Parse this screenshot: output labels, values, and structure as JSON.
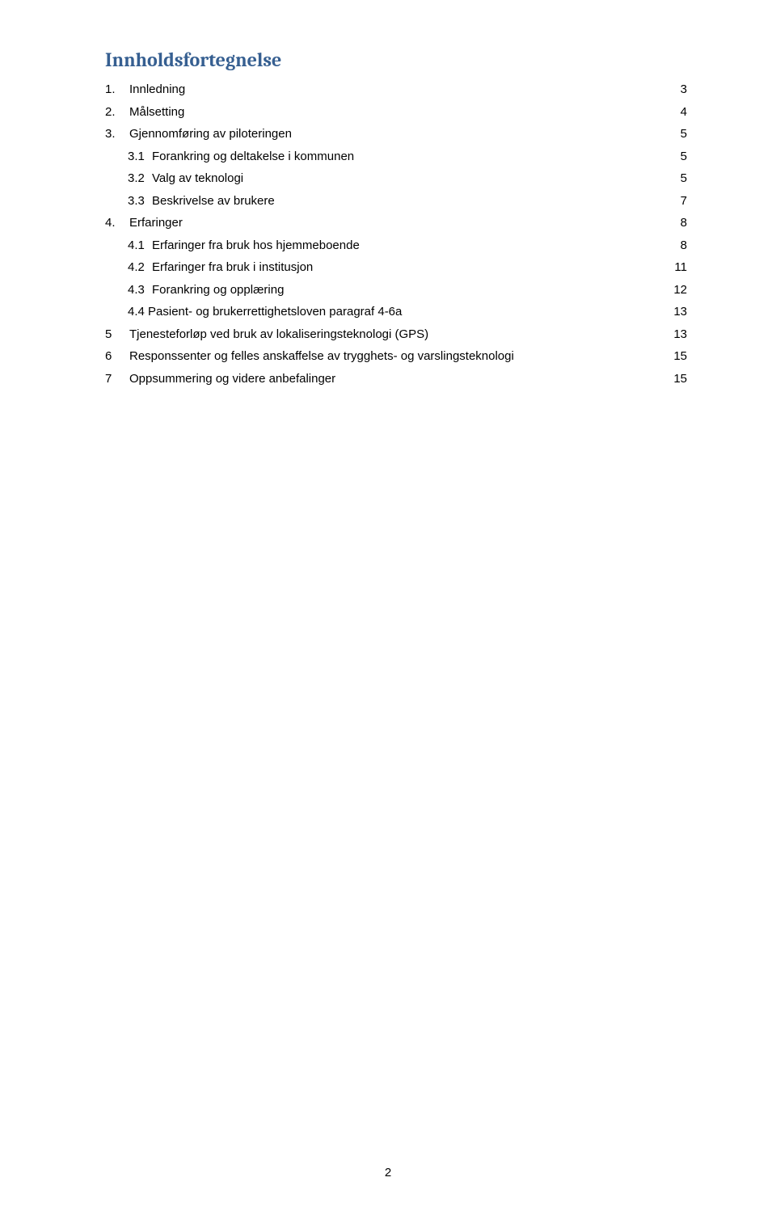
{
  "title": "Innholdsfortegnelse",
  "title_color": "#365f91",
  "title_fontsize": 24,
  "body_fontsize": 15,
  "text_color": "#000000",
  "background_color": "#ffffff",
  "page_number": "2",
  "toc": [
    {
      "level": 1,
      "num": "1.",
      "label": "Innledning",
      "page": "3"
    },
    {
      "level": 1,
      "num": "2.",
      "label": "Målsetting",
      "page": "4"
    },
    {
      "level": 1,
      "num": "3.",
      "label": "Gjennomføring av piloteringen",
      "page": "5"
    },
    {
      "level": 2,
      "num": "3.1",
      "label": "Forankring og deltakelse i kommunen",
      "page": "5"
    },
    {
      "level": 2,
      "num": "3.2",
      "label": "Valg av teknologi",
      "page": "5"
    },
    {
      "level": 2,
      "num": "3.3",
      "label": "Beskrivelse av brukere",
      "page": "7"
    },
    {
      "level": 1,
      "num": "4.",
      "label": "Erfaringer",
      "page": "8"
    },
    {
      "level": 2,
      "num": "4.1",
      "label": "Erfaringer fra bruk hos hjemmeboende",
      "page": "8"
    },
    {
      "level": 2,
      "num": "4.2",
      "label": "Erfaringer fra bruk i institusjon",
      "page": "11"
    },
    {
      "level": 2,
      "num": "4.3",
      "label": "Forankring og opplæring",
      "page": "12"
    },
    {
      "level": 2,
      "num": "4.4",
      "label": "Pasient- og brukerrettighetsloven paragraf 4-6a",
      "page": "13",
      "num_inline": true
    },
    {
      "level": 1,
      "num": "5",
      "label": "Tjenesteforløp ved bruk av lokaliseringsteknologi (GPS)",
      "page": "13"
    },
    {
      "level": 1,
      "num": "6",
      "label": "Responssenter og felles anskaffelse av trygghets- og varslingsteknologi",
      "page": "15"
    },
    {
      "level": 1,
      "num": "7",
      "label": "Oppsummering og videre anbefalinger",
      "page": "15"
    }
  ]
}
